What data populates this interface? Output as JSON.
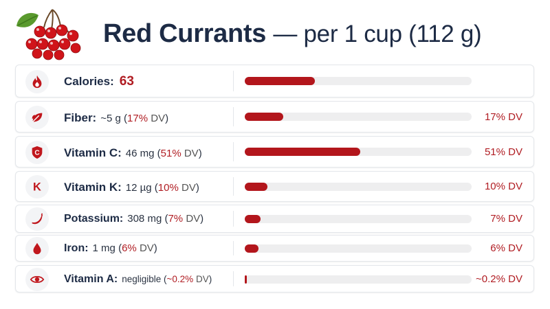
{
  "header": {
    "title_main": "Red Currants",
    "title_sub": "— per 1 cup (112 g)"
  },
  "colors": {
    "accent": "#b3161c",
    "title": "#1d2b45",
    "track": "#eeeeef"
  },
  "rows": [
    {
      "icon": "flame-icon",
      "name": "Calories:",
      "value": "63",
      "fraction": 0.31
    },
    {
      "icon": "leaf-icon",
      "name": "Fiber:",
      "amount": "~5 g",
      "dv_pct": "17%",
      "dv_word": "DV",
      "fraction": 0.17,
      "right_pct": "17%",
      "right_word": "DV"
    },
    {
      "icon": "shield-c-icon",
      "name": "Vitamin C:",
      "amount": "46 mg",
      "dv_pct": "51%",
      "dv_word": "DV",
      "fraction": 0.51,
      "right_pct": "51%",
      "right_word": "DV"
    },
    {
      "icon": "letter-k-icon",
      "name": "Vitamin K:",
      "amount": "12 µg",
      "dv_pct": "10%",
      "dv_word": "DV",
      "fraction": 0.1,
      "right_pct": "10%",
      "right_word": "DV"
    },
    {
      "icon": "banana-icon",
      "name": "Potassium:",
      "amount": "308 mg",
      "dv_pct": "7%",
      "dv_word": "DV",
      "fraction": 0.07,
      "right_pct": "7%",
      "right_word": "DV"
    },
    {
      "icon": "drop-icon",
      "name": "Iron:",
      "amount": "1 mg",
      "dv_pct": "6%",
      "dv_word": "DV",
      "fraction": 0.06,
      "right_pct": "6%",
      "right_word": "DV"
    },
    {
      "icon": "eye-icon",
      "name": "Vitamin A:",
      "amount": "negligible",
      "dv_pct": "~0.2%",
      "dv_word": "DV",
      "fraction": 0.004,
      "right_pct": "~0.2%",
      "right_word": "DV"
    }
  ]
}
